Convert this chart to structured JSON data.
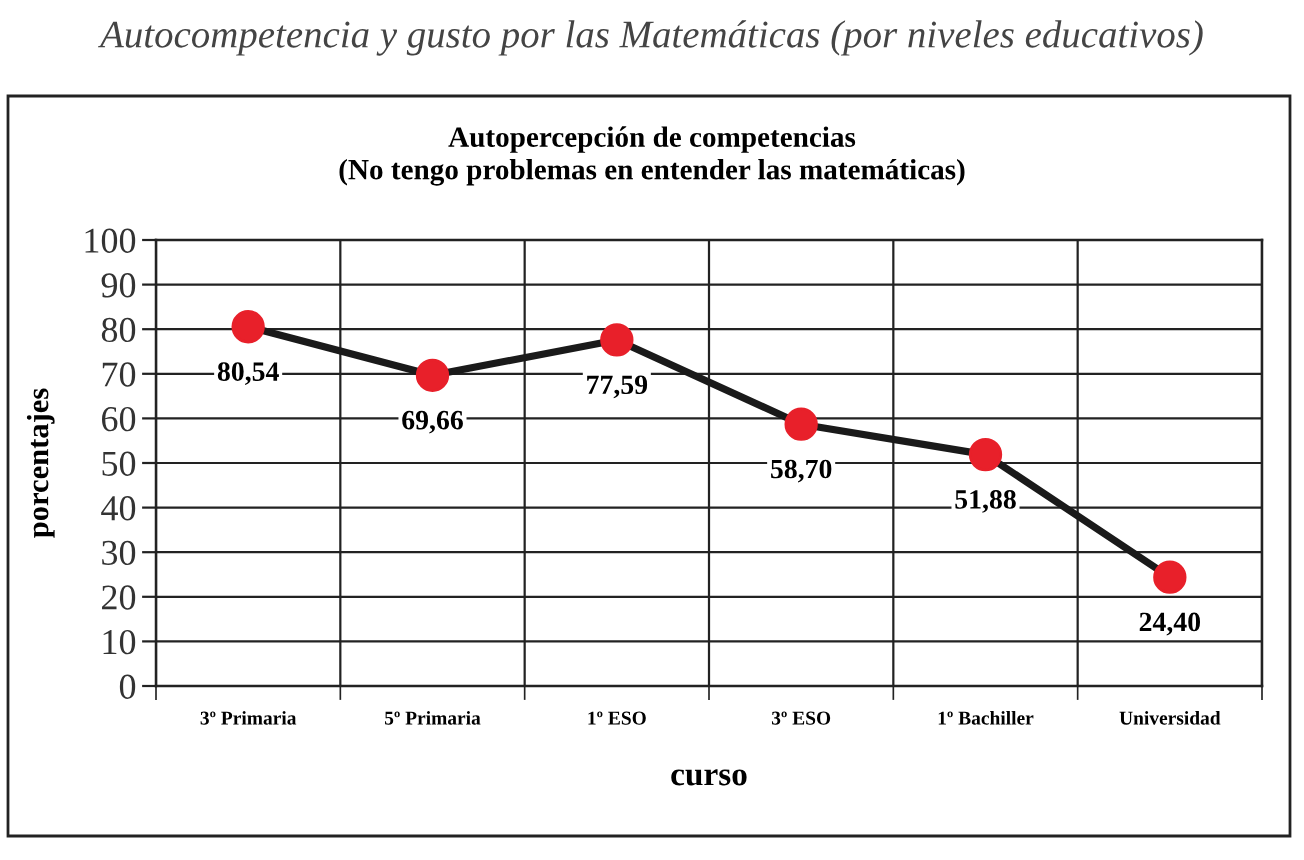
{
  "chart_data": {
    "type": "line",
    "title": "Autocompetencia y gusto por las Matemáticas (por niveles educativos)",
    "subtitle": "Autopercepción de competencias\n(No tengo problemas en entender las matemáticas)",
    "xlabel": "curso",
    "ylabel": "porcentajes",
    "categories": [
      "3º Primaria",
      "5º Primaria",
      "1º ESO",
      "3º ESO",
      "1º Bachiller",
      "Universidad"
    ],
    "series": [
      {
        "color": "#1a1a1a",
        "colors": [
          "#e8202a",
          "#e8202a",
          "#e8202a",
          "#e8202a",
          "#e8202a",
          "#e8202a"
        ],
        "values": [
          80.54,
          69.66,
          77.59,
          58.7,
          51.88,
          24.4
        ],
        "value_labels": [
          "80,54",
          "69,66",
          "77,59",
          "58,70",
          "51,88",
          "24,40"
        ]
      }
    ],
    "ylim": [
      0,
      100
    ],
    "yticks": [
      0,
      10,
      20,
      30,
      40,
      50,
      60,
      70,
      80,
      90,
      100
    ],
    "grid": true,
    "marker": "circle",
    "line_style": "solid"
  }
}
